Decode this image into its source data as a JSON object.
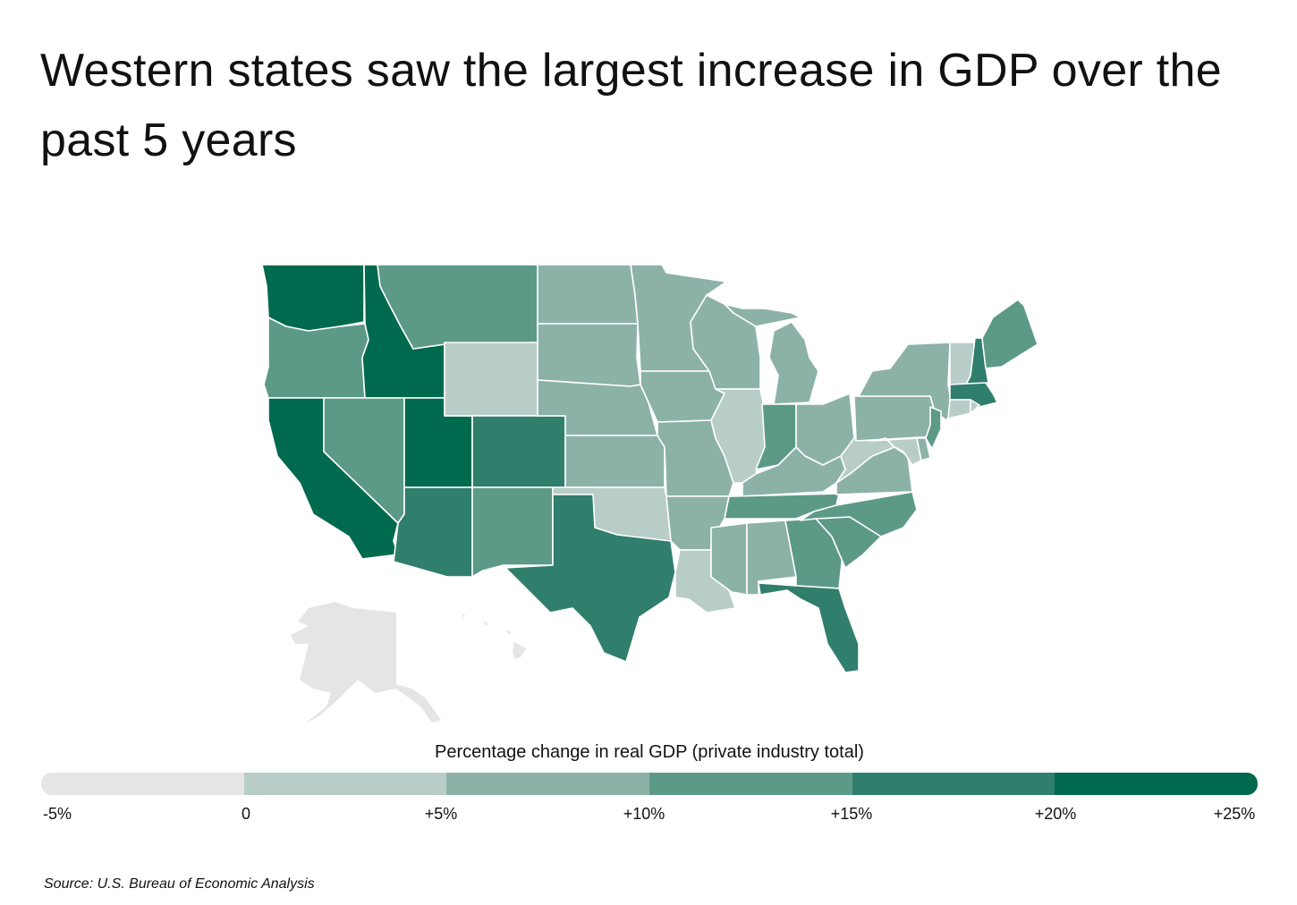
{
  "title": "Western states saw the largest increase in GDP over the past 5 years",
  "legend": {
    "title": "Percentage change in real GDP (private industry total)",
    "ticks": [
      "-5%",
      "0",
      "+5%",
      "+10%",
      "+15%",
      "+20%",
      "+25%"
    ],
    "bins": [
      {
        "range": [
          -5,
          0
        ],
        "color": "#e5e5e5"
      },
      {
        "range": [
          0,
          5
        ],
        "color": "#b8cdc7"
      },
      {
        "range": [
          5,
          10
        ],
        "color": "#8cb2a7"
      },
      {
        "range": [
          10,
          15
        ],
        "color": "#5c9a87"
      },
      {
        "range": [
          15,
          20
        ],
        "color": "#307e6c"
      },
      {
        "range": [
          20,
          25
        ],
        "color": "#006a4e"
      }
    ]
  },
  "regions": [
    {
      "id": "WA",
      "bin": 5
    },
    {
      "id": "OR",
      "bin": 3
    },
    {
      "id": "CA",
      "bin": 5
    },
    {
      "id": "ID",
      "bin": 5
    },
    {
      "id": "NV",
      "bin": 3
    },
    {
      "id": "UT",
      "bin": 5
    },
    {
      "id": "AZ",
      "bin": 4
    },
    {
      "id": "MT",
      "bin": 3
    },
    {
      "id": "WY",
      "bin": 1
    },
    {
      "id": "CO",
      "bin": 4
    },
    {
      "id": "NM",
      "bin": 3
    },
    {
      "id": "ND",
      "bin": 2
    },
    {
      "id": "SD",
      "bin": 2
    },
    {
      "id": "NE",
      "bin": 2
    },
    {
      "id": "KS",
      "bin": 2
    },
    {
      "id": "OK",
      "bin": 1
    },
    {
      "id": "TX",
      "bin": 4
    },
    {
      "id": "MN",
      "bin": 2
    },
    {
      "id": "IA",
      "bin": 2
    },
    {
      "id": "MO",
      "bin": 2
    },
    {
      "id": "AR",
      "bin": 2
    },
    {
      "id": "LA",
      "bin": 1
    },
    {
      "id": "WI",
      "bin": 2
    },
    {
      "id": "IL",
      "bin": 1
    },
    {
      "id": "MI",
      "bin": 2
    },
    {
      "id": "IN",
      "bin": 3
    },
    {
      "id": "OH",
      "bin": 2
    },
    {
      "id": "KY",
      "bin": 2
    },
    {
      "id": "TN",
      "bin": 3
    },
    {
      "id": "MS",
      "bin": 2
    },
    {
      "id": "AL",
      "bin": 2
    },
    {
      "id": "GA",
      "bin": 3
    },
    {
      "id": "FL",
      "bin": 4
    },
    {
      "id": "SC",
      "bin": 3
    },
    {
      "id": "NC",
      "bin": 3
    },
    {
      "id": "VA",
      "bin": 2
    },
    {
      "id": "WV",
      "bin": 1
    },
    {
      "id": "PA",
      "bin": 2
    },
    {
      "id": "NY",
      "bin": 2
    },
    {
      "id": "MD",
      "bin": 1
    },
    {
      "id": "DE",
      "bin": 2
    },
    {
      "id": "NJ",
      "bin": 3
    },
    {
      "id": "VT",
      "bin": 1
    },
    {
      "id": "NH",
      "bin": 4
    },
    {
      "id": "ME",
      "bin": 3
    },
    {
      "id": "MA",
      "bin": 4
    },
    {
      "id": "CT",
      "bin": 1
    },
    {
      "id": "RI",
      "bin": 1
    },
    {
      "id": "AK",
      "bin": 0
    },
    {
      "id": "HI",
      "bin": 0
    }
  ],
  "source": "Source:  U.S. Bureau of Economic Analysis"
}
